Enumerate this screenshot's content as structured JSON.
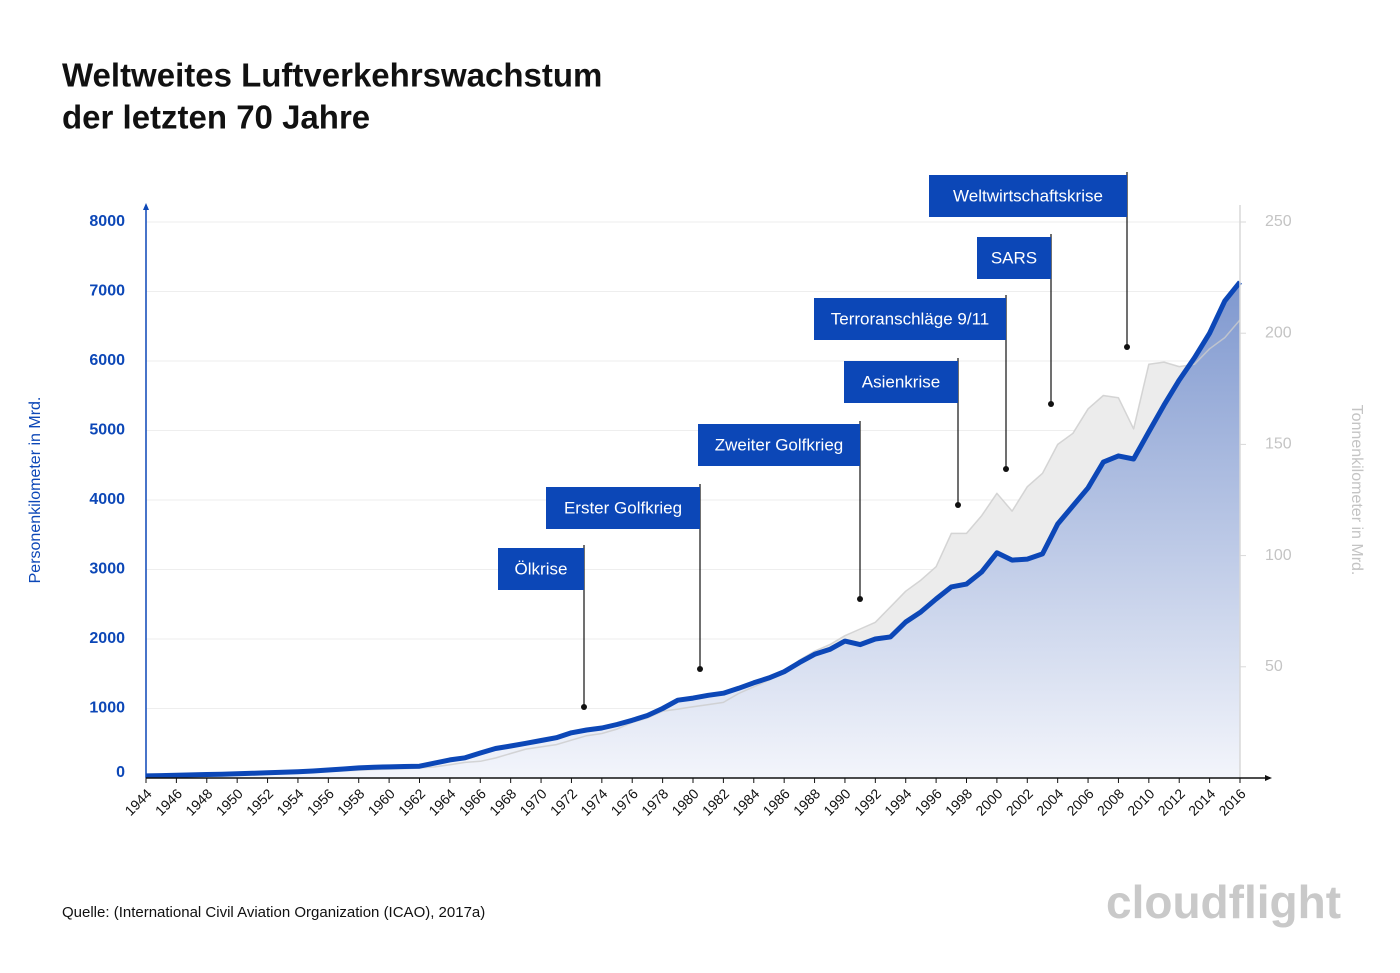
{
  "chart_data": {
    "type": "area",
    "title": [
      "Weltweites Luftverkehrswachstum",
      "der letzten 70 Jahre"
    ],
    "y_label": "Personenkilometer in Mrd.",
    "y2_label": "Tonnenkilometer in Mrd.",
    "source": "Quelle: (International Civil Aviation Organization (ICAO), 2017a)",
    "logo": "cloudflight",
    "x": [
      1944,
      1945,
      1946,
      1947,
      1948,
      1949,
      1950,
      1951,
      1952,
      1953,
      1954,
      1955,
      1956,
      1957,
      1958,
      1959,
      1960,
      1961,
      1962,
      1963,
      1964,
      1965,
      1966,
      1967,
      1968,
      1969,
      1970,
      1971,
      1972,
      1973,
      1974,
      1975,
      1976,
      1977,
      1978,
      1979,
      1980,
      1981,
      1982,
      1983,
      1984,
      1985,
      1986,
      1987,
      1988,
      1989,
      1990,
      1991,
      1992,
      1993,
      1994,
      1995,
      1996,
      1997,
      1998,
      1999,
      2000,
      2001,
      2002,
      2003,
      2004,
      2005,
      2006,
      2007,
      2008,
      2009,
      2010,
      2011,
      2012,
      2013,
      2014,
      2015,
      2016
    ],
    "xlim": [
      1944,
      2016
    ],
    "xticks": [
      1944,
      1946,
      1948,
      1950,
      1952,
      1954,
      1956,
      1958,
      1960,
      1962,
      1964,
      1966,
      1968,
      1970,
      1972,
      1974,
      1976,
      1978,
      1980,
      1982,
      1984,
      1986,
      1988,
      1990,
      1992,
      1994,
      1996,
      1998,
      2000,
      2002,
      2004,
      2006,
      2008,
      2010,
      2012,
      2014,
      2016
    ],
    "ylim": [
      0,
      8000
    ],
    "yticks": [
      0,
      1000,
      2000,
      3000,
      4000,
      5000,
      6000,
      7000,
      8000
    ],
    "y2lim": [
      0,
      250
    ],
    "y2ticks": [
      50,
      100,
      150,
      200,
      250
    ],
    "grid": true,
    "series": [
      {
        "name": "Personenkilometer",
        "color": "#0c47b7",
        "values": [
          30,
          35,
          40,
          45,
          50,
          55,
          60,
          68,
          75,
          82,
          90,
          100,
          115,
          130,
          145,
          155,
          160,
          165,
          170,
          215,
          260,
          290,
          360,
          425,
          460,
          500,
          540,
          580,
          650,
          690,
          720,
          770,
          830,
          900,
          1000,
          1120,
          1150,
          1190,
          1220,
          1290,
          1370,
          1440,
          1530,
          1660,
          1780,
          1850,
          1970,
          1920,
          2000,
          2030,
          2245,
          2390,
          2575,
          2750,
          2790,
          2965,
          3240,
          3135,
          3150,
          3225,
          3655,
          3915,
          4175,
          4545,
          4635,
          4590,
          4980,
          5365,
          5725,
          6045,
          6400,
          6865,
          7135
        ]
      },
      {
        "name": "Tonnenkilometer",
        "color": "#cccccc",
        "axis": "y2",
        "values": [
          0.5,
          0.6,
          0.8,
          1,
          1.2,
          1.4,
          1.6,
          1.8,
          2,
          2.2,
          2.4,
          2.7,
          3,
          3.3,
          3.5,
          3.8,
          4,
          4.2,
          4.5,
          5,
          6,
          7,
          7.5,
          9,
          11,
          13,
          14,
          15,
          17,
          19,
          20,
          22,
          25,
          27,
          30,
          31,
          32,
          33,
          34,
          38,
          41,
          44,
          48,
          53,
          57,
          60,
          64,
          67,
          70,
          77,
          84,
          89,
          95,
          110,
          110,
          118,
          128,
          120,
          131,
          137,
          150,
          155,
          166,
          172,
          171,
          157,
          186,
          187,
          185,
          186,
          193,
          198,
          206
        ]
      }
    ],
    "annotations": [
      "Ölkrise",
      "Erster Golfkrieg",
      "Zweiter Golfkrieg",
      "Asienkrise",
      "Terroranschläge 9/11",
      "SARS",
      "Weltwirtschaftskrise"
    ]
  }
}
